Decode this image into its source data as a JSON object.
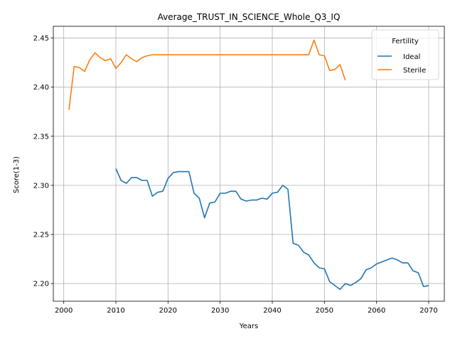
{
  "chart_data": {
    "type": "line",
    "title": "Average_TRUST_IN_SCIENCE_Whole_Q3_IQ",
    "xlabel": "Years",
    "ylabel": "Score(1-3)",
    "xlim": [
      1998,
      2073
    ],
    "ylim": [
      2.182,
      2.462
    ],
    "xticks": [
      2000,
      2010,
      2020,
      2030,
      2040,
      2050,
      2060,
      2070
    ],
    "yticks": [
      2.2,
      2.25,
      2.3,
      2.35,
      2.4,
      2.45
    ],
    "grid": true,
    "legend": {
      "title": "Fertility",
      "position": "top-right"
    },
    "series": [
      {
        "name": "Ideal",
        "color": "#1f77b4",
        "x": [
          2010,
          2011,
          2012,
          2013,
          2014,
          2015,
          2016,
          2017,
          2018,
          2019,
          2020,
          2021,
          2022,
          2023,
          2024,
          2025,
          2026,
          2027,
          2028,
          2029,
          2030,
          2031,
          2032,
          2033,
          2034,
          2035,
          2036,
          2037,
          2038,
          2039,
          2040,
          2041,
          2042,
          2043,
          2044,
          2045,
          2046,
          2047,
          2048,
          2049,
          2050,
          2051,
          2052,
          2053,
          2054,
          2055,
          2056,
          2057,
          2058,
          2059,
          2060,
          2061,
          2062,
          2063,
          2064,
          2065,
          2066,
          2067,
          2068,
          2069,
          2070
        ],
        "y": [
          2.317,
          2.305,
          2.302,
          2.308,
          2.308,
          2.305,
          2.305,
          2.289,
          2.293,
          2.294,
          2.307,
          2.313,
          2.314,
          2.314,
          2.314,
          2.292,
          2.287,
          2.267,
          2.282,
          2.283,
          2.292,
          2.292,
          2.294,
          2.294,
          2.286,
          2.284,
          2.285,
          2.285,
          2.287,
          2.286,
          2.292,
          2.293,
          2.3,
          2.296,
          2.241,
          2.239,
          2.232,
          2.229,
          2.221,
          2.216,
          2.215,
          2.202,
          2.198,
          2.194,
          2.2,
          2.198,
          2.201,
          2.205,
          2.214,
          2.216,
          2.22,
          2.222,
          2.224,
          2.226,
          2.224,
          2.221,
          2.221,
          2.213,
          2.211,
          2.197,
          2.198
        ]
      },
      {
        "name": "Sterile",
        "color": "#ff7f0e",
        "x": [
          2001,
          2002,
          2003,
          2004,
          2005,
          2006,
          2007,
          2008,
          2009,
          2010,
          2011,
          2012,
          2013,
          2014,
          2015,
          2016,
          2017,
          2018,
          2019,
          2020,
          2021,
          2022,
          2023,
          2024,
          2025,
          2026,
          2027,
          2028,
          2029,
          2030,
          2031,
          2032,
          2033,
          2034,
          2035,
          2036,
          2037,
          2038,
          2039,
          2040,
          2041,
          2042,
          2043,
          2044,
          2045,
          2046,
          2047,
          2048,
          2049,
          2050,
          2051,
          2052,
          2053,
          2054
        ],
        "y": [
          2.377,
          2.421,
          2.42,
          2.416,
          2.428,
          2.435,
          2.43,
          2.427,
          2.429,
          2.419,
          2.425,
          2.433,
          2.429,
          2.426,
          2.43,
          2.432,
          2.433,
          2.433,
          2.433,
          2.433,
          2.433,
          2.433,
          2.433,
          2.433,
          2.433,
          2.433,
          2.433,
          2.433,
          2.433,
          2.433,
          2.433,
          2.433,
          2.433,
          2.433,
          2.433,
          2.433,
          2.433,
          2.433,
          2.433,
          2.433,
          2.433,
          2.433,
          2.433,
          2.433,
          2.433,
          2.433,
          2.433,
          2.448,
          2.433,
          2.432,
          2.417,
          2.418,
          2.423,
          2.407
        ]
      }
    ]
  }
}
